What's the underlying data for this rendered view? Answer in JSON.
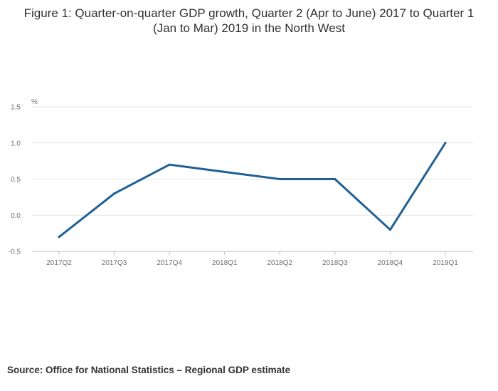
{
  "title": "Figure 1: Quarter-on-quarter GDP growth, Quarter 2 (Apr to June) 2017 to Quarter 1 (Jan to Mar) 2019 in the North West",
  "source": "Source: Office for National Statistics – Regional GDP estimate",
  "chart_data": {
    "type": "line",
    "title": "Figure 1: Quarter-on-quarter GDP growth, Quarter 2 (Apr to June) 2017 to Quarter 1 (Jan to Mar) 2019 in the North West",
    "ylabel": "%",
    "xlabel": "",
    "categories": [
      "2017Q2",
      "2017Q3",
      "2017Q4",
      "2018Q1",
      "2018Q2",
      "2018Q3",
      "2018Q4",
      "2019Q1"
    ],
    "series": [
      {
        "values": [
          -0.3,
          0.3,
          0.7,
          0.6,
          0.5,
          0.5,
          -0.2,
          1.0
        ],
        "color": "#206095"
      }
    ],
    "yticks": [
      "-0.5",
      "0.0",
      "0.5",
      "1.0",
      "1.5"
    ],
    "ylim": [
      -0.5,
      1.5
    ],
    "grid": true,
    "legend": "none"
  },
  "colors": {
    "line": "#206095",
    "grid": "#e6e6e6",
    "axis": "#bebebe",
    "tick_text": "#707071"
  }
}
